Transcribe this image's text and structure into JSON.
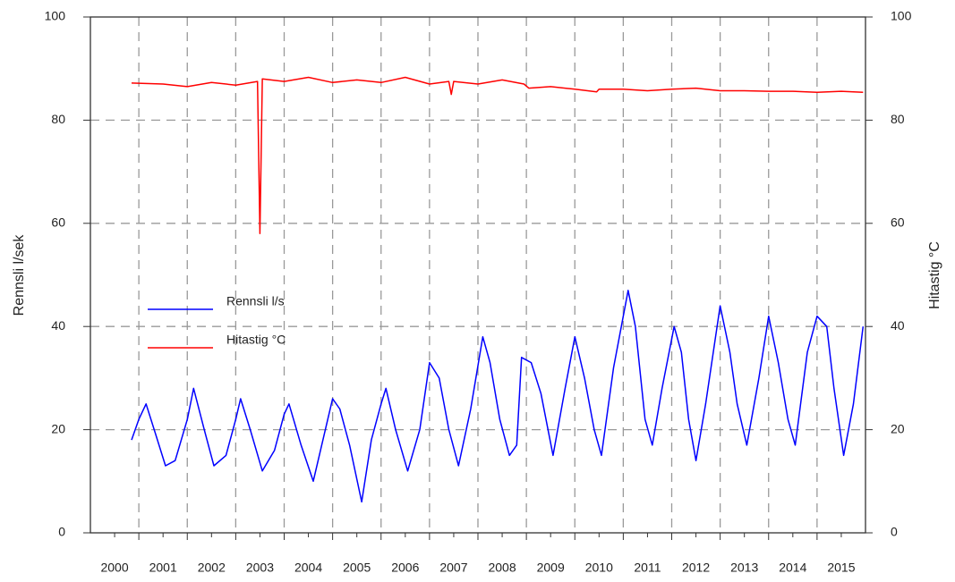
{
  "chart_data": {
    "type": "line",
    "y_label": "Rennsli l/sek",
    "y2_label": "Hitastig °C",
    "xlim": [
      2000,
      2016
    ],
    "xticks": [
      {
        "value": 2000.5,
        "label": "2000"
      },
      {
        "value": 2001.5,
        "label": "2001"
      },
      {
        "value": 2002.5,
        "label": "2002"
      },
      {
        "value": 2003.5,
        "label": "2003"
      },
      {
        "value": 2004.5,
        "label": "2004"
      },
      {
        "value": 2005.5,
        "label": "2005"
      },
      {
        "value": 2006.5,
        "label": "2006"
      },
      {
        "value": 2007.5,
        "label": "2007"
      },
      {
        "value": 2008.5,
        "label": "2008"
      },
      {
        "value": 2009.5,
        "label": "2009"
      },
      {
        "value": 2010.5,
        "label": "2010"
      },
      {
        "value": 2011.5,
        "label": "2011"
      },
      {
        "value": 2012.5,
        "label": "2012"
      },
      {
        "value": 2013.5,
        "label": "2013"
      },
      {
        "value": 2014.5,
        "label": "2014"
      },
      {
        "value": 2015.5,
        "label": "2015"
      }
    ],
    "xgrid": [
      2001,
      2002,
      2003,
      2004,
      2005,
      2006,
      2007,
      2008,
      2009,
      2010,
      2011,
      2012,
      2013,
      2014,
      2015
    ],
    "ylim": [
      0,
      100
    ],
    "yticks": [
      0,
      20,
      40,
      60,
      80,
      100
    ],
    "y2lim": [
      0,
      100
    ],
    "y2ticks": [
      0,
      20,
      40,
      60,
      80,
      100
    ],
    "grid": true,
    "legend": "center left",
    "series": [
      {
        "name": "Rennsli l/s",
        "color": "#0000ff",
        "x": [
          2000.85,
          2001.0,
          2001.15,
          2001.35,
          2001.55,
          2001.75,
          2002.0,
          2002.13,
          2002.35,
          2002.55,
          2002.8,
          2003.0,
          2003.1,
          2003.3,
          2003.55,
          2003.8,
          2004.0,
          2004.1,
          2004.35,
          2004.6,
          2004.85,
          2005.0,
          2005.15,
          2005.35,
          2005.6,
          2005.8,
          2006.0,
          2006.1,
          2006.3,
          2006.55,
          2006.8,
          2007.0,
          2007.2,
          2007.4,
          2007.6,
          2007.85,
          2008.1,
          2008.25,
          2008.45,
          2008.65,
          2008.8,
          2008.9,
          2009.1,
          2009.3,
          2009.55,
          2009.8,
          2010.0,
          2010.2,
          2010.4,
          2010.55,
          2010.8,
          2011.1,
          2011.25,
          2011.45,
          2011.6,
          2011.8,
          2012.05,
          2012.2,
          2012.35,
          2012.5,
          2012.7,
          2013.0,
          2013.2,
          2013.35,
          2013.55,
          2013.8,
          2014.0,
          2014.2,
          2014.4,
          2014.55,
          2014.8,
          2015.0,
          2015.2,
          2015.35,
          2015.55,
          2015.75,
          2015.95
        ],
        "values": [
          18,
          22,
          25,
          19,
          13,
          14,
          22,
          28,
          20,
          13,
          15,
          22,
          26,
          20,
          12,
          16,
          23,
          25,
          17,
          10,
          20,
          26,
          24,
          17,
          6,
          18,
          25,
          28,
          20,
          12,
          20,
          33,
          30,
          20,
          13,
          24,
          38,
          33,
          22,
          15,
          17,
          34,
          33,
          27,
          15,
          28,
          38,
          30,
          20,
          15,
          32,
          47,
          40,
          22,
          17,
          28,
          40,
          35,
          22,
          14,
          25,
          44,
          35,
          25,
          17,
          30,
          42,
          33,
          22,
          17,
          35,
          42,
          40,
          28,
          15,
          25,
          40
        ]
      },
      {
        "name": "Hitastig °C",
        "color": "#ff0000",
        "axis": "y2",
        "x": [
          2000.85,
          2001.5,
          2002.0,
          2002.5,
          2003.0,
          2003.45,
          2003.5,
          2003.55,
          2004.0,
          2004.5,
          2005.0,
          2005.5,
          2006.0,
          2006.5,
          2007.0,
          2007.4,
          2007.45,
          2007.5,
          2008.0,
          2008.5,
          2008.95,
          2009.05,
          2009.5,
          2010.0,
          2010.45,
          2010.5,
          2011.0,
          2011.5,
          2012.0,
          2012.5,
          2013.0,
          2013.5,
          2014.0,
          2014.5,
          2015.0,
          2015.5,
          2015.95
        ],
        "values": [
          87.2,
          87,
          86.5,
          87.3,
          86.8,
          87.5,
          58,
          88,
          87.5,
          88.3,
          87.3,
          87.8,
          87.3,
          88.3,
          87,
          87.5,
          85,
          87.5,
          87,
          87.8,
          87,
          86.2,
          86.5,
          86,
          85.5,
          86,
          86,
          85.7,
          86,
          86.2,
          85.7,
          85.7,
          85.6,
          85.6,
          85.4,
          85.6,
          85.4
        ]
      }
    ]
  }
}
